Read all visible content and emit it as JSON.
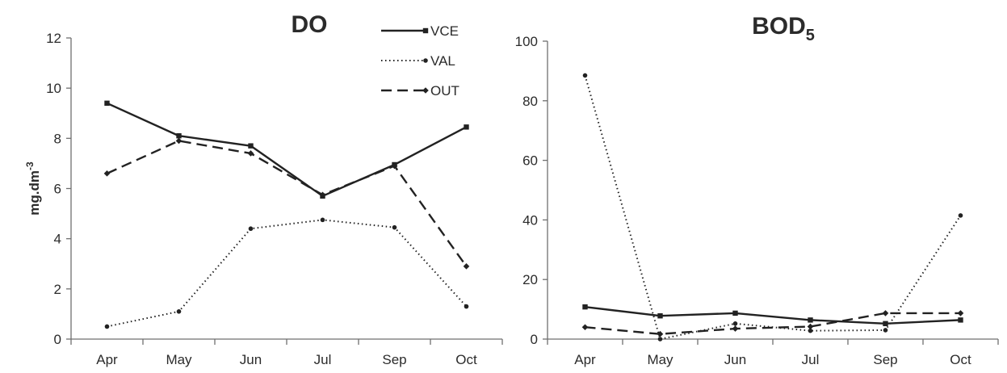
{
  "chart_data": [
    {
      "type": "line",
      "title": "DO",
      "xlabel": "",
      "ylabel": "mg.dm",
      "ylabel_sup": "-3",
      "categories": [
        "Apr",
        "May",
        "Jun",
        "Jul",
        "Sep",
        "Oct"
      ],
      "ylim": [
        0,
        12
      ],
      "yticks": [
        "0",
        "2",
        "4",
        "6",
        "8",
        "10",
        "12"
      ],
      "grid": false,
      "legend": "top-right",
      "series": [
        {
          "name": "VCE",
          "style": "solid",
          "values": [
            9.4,
            8.1,
            7.7,
            5.7,
            6.95,
            8.45
          ]
        },
        {
          "name": "VAL",
          "style": "dotted",
          "values": [
            0.5,
            1.1,
            4.4,
            4.75,
            4.45,
            1.3
          ]
        },
        {
          "name": "OUT",
          "style": "dashed",
          "values": [
            6.6,
            7.9,
            7.4,
            5.75,
            6.9,
            2.9
          ]
        }
      ]
    },
    {
      "type": "line",
      "title": "BOD",
      "title_sub": "5",
      "xlabel": "",
      "ylabel": "",
      "categories": [
        "Apr",
        "May",
        "Jun",
        "Jul",
        "Sep",
        "Oct"
      ],
      "ylim": [
        0,
        100
      ],
      "yticks": [
        "0",
        "20",
        "40",
        "60",
        "80",
        "100"
      ],
      "grid": false,
      "series": [
        {
          "name": "VCE",
          "style": "solid",
          "values": [
            10.8,
            7.8,
            8.7,
            6.4,
            5.2,
            6.4
          ]
        },
        {
          "name": "VAL",
          "style": "dotted",
          "values": [
            88.5,
            0,
            5.2,
            2.8,
            3.0,
            41.5
          ]
        },
        {
          "name": "OUT",
          "style": "dashed",
          "values": [
            4.0,
            1.7,
            3.5,
            4.2,
            8.7,
            8.7
          ]
        }
      ]
    }
  ]
}
